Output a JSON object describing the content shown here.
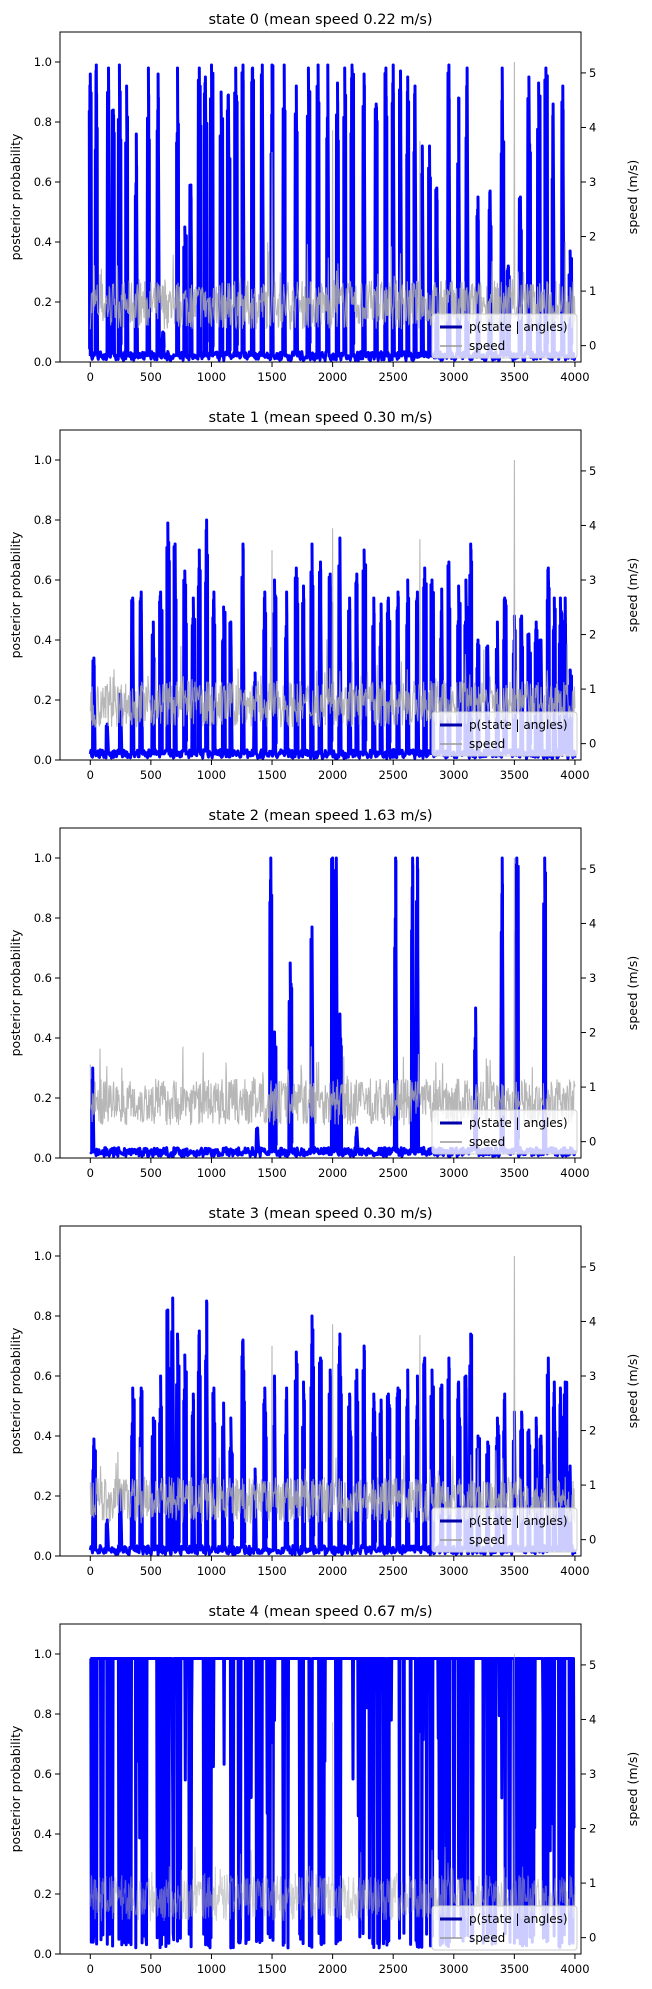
{
  "chart_data": [
    {
      "type": "line",
      "title": "state 0 (mean speed 0.22 m/s)",
      "ylabel": "posterior probability",
      "y2label": "speed (m/s)",
      "xlim": [
        -250,
        4050
      ],
      "ylim": [
        0,
        1.1
      ],
      "y2lim": [
        -0.3,
        5.75
      ],
      "xticks": [
        0,
        500,
        1000,
        1500,
        2000,
        2500,
        3000,
        3500,
        4000
      ],
      "yticks": [
        0.0,
        0.2,
        0.4,
        0.6,
        0.8,
        1.0
      ],
      "y2ticks": [
        0,
        1,
        2,
        3,
        4,
        5
      ],
      "legend": {
        "position": "lower right",
        "entries": [
          "p(state | angles)",
          "speed"
        ]
      },
      "series": [
        {
          "name": "p(state | angles)",
          "color": "#0000ff",
          "peaks": [
            [
              0,
              0.96
            ],
            [
              50,
              0.99
            ],
            [
              150,
              0.98
            ],
            [
              190,
              0.84
            ],
            [
              240,
              0.99
            ],
            [
              300,
              0.92
            ],
            [
              380,
              0.76
            ],
            [
              480,
              0.98
            ],
            [
              560,
              0.96
            ],
            [
              600,
              0.1
            ],
            [
              720,
              0.98
            ],
            [
              780,
              0.45
            ],
            [
              830,
              0.59
            ],
            [
              900,
              0.98
            ],
            [
              950,
              0.95
            ],
            [
              1000,
              0.99
            ],
            [
              1080,
              0.9
            ],
            [
              1140,
              0.89
            ],
            [
              1200,
              0.98
            ],
            [
              1260,
              0.99
            ],
            [
              1340,
              0.98
            ],
            [
              1420,
              0.99
            ],
            [
              1500,
              0.99
            ],
            [
              1600,
              0.99
            ],
            [
              1700,
              0.92
            ],
            [
              1800,
              0.98
            ],
            [
              1880,
              0.99
            ],
            [
              1960,
              0.99
            ],
            [
              2040,
              0.93
            ],
            [
              2100,
              0.98
            ],
            [
              2160,
              0.99
            ],
            [
              2260,
              0.96
            ],
            [
              2360,
              0.86
            ],
            [
              2440,
              0.98
            ],
            [
              2500,
              0.99
            ],
            [
              2560,
              0.97
            ],
            [
              2620,
              0.95
            ],
            [
              2680,
              0.92
            ],
            [
              2740,
              0.72
            ],
            [
              2800,
              0.72
            ],
            [
              2860,
              0.58
            ],
            [
              2960,
              0.99
            ],
            [
              3040,
              0.88
            ],
            [
              3110,
              0.98
            ],
            [
              3200,
              0.55
            ],
            [
              3300,
              0.57
            ],
            [
              3400,
              0.98
            ],
            [
              3450,
              0.32
            ],
            [
              3550,
              0.55
            ],
            [
              3620,
              0.95
            ],
            [
              3700,
              0.93
            ],
            [
              3760,
              0.98
            ],
            [
              3820,
              0.86
            ],
            [
              3900,
              0.92
            ],
            [
              3960,
              0.37
            ]
          ]
        },
        {
          "name": "speed",
          "color": "#b0b0b0",
          "max_speed_at": [
            3500,
            5.2
          ]
        }
      ]
    },
    {
      "type": "line",
      "title": "state 1 (mean speed 0.30 m/s)",
      "ylabel": "posterior probability",
      "y2label": "speed (m/s)",
      "xlim": [
        -250,
        4050
      ],
      "ylim": [
        0,
        1.1
      ],
      "y2lim": [
        -0.3,
        5.75
      ],
      "xticks": [
        0,
        500,
        1000,
        1500,
        2000,
        2500,
        3000,
        3500,
        4000
      ],
      "yticks": [
        0.0,
        0.2,
        0.4,
        0.6,
        0.8,
        1.0
      ],
      "y2ticks": [
        0,
        1,
        2,
        3,
        4,
        5
      ],
      "legend": {
        "position": "lower right",
        "entries": [
          "p(state | angles)",
          "speed"
        ]
      },
      "series": [
        {
          "name": "p(state | angles)",
          "color": "#0000ff",
          "peaks": [
            [
              30,
              0.34
            ],
            [
              140,
              0.12
            ],
            [
              250,
              0.22
            ],
            [
              350,
              0.54
            ],
            [
              420,
              0.56
            ],
            [
              520,
              0.46
            ],
            [
              580,
              0.56
            ],
            [
              640,
              0.79
            ],
            [
              700,
              0.72
            ],
            [
              780,
              0.63
            ],
            [
              850,
              0.54
            ],
            [
              900,
              0.7
            ],
            [
              960,
              0.8
            ],
            [
              1020,
              0.56
            ],
            [
              1100,
              0.51
            ],
            [
              1160,
              0.46
            ],
            [
              1260,
              0.72
            ],
            [
              1360,
              0.29
            ],
            [
              1440,
              0.56
            ],
            [
              1520,
              0.6
            ],
            [
              1620,
              0.56
            ],
            [
              1700,
              0.64
            ],
            [
              1760,
              0.58
            ],
            [
              1830,
              0.72
            ],
            [
              1900,
              0.66
            ],
            [
              1980,
              0.62
            ],
            [
              2060,
              0.74
            ],
            [
              2140,
              0.54
            ],
            [
              2200,
              0.62
            ],
            [
              2260,
              0.7
            ],
            [
              2340,
              0.54
            ],
            [
              2400,
              0.52
            ],
            [
              2460,
              0.54
            ],
            [
              2540,
              0.56
            ],
            [
              2620,
              0.6
            ],
            [
              2700,
              0.56
            ],
            [
              2760,
              0.64
            ],
            [
              2820,
              0.6
            ],
            [
              2900,
              0.57
            ],
            [
              2960,
              0.66
            ],
            [
              3040,
              0.58
            ],
            [
              3100,
              0.6
            ],
            [
              3140,
              0.72
            ],
            [
              3200,
              0.4
            ],
            [
              3280,
              0.38
            ],
            [
              3360,
              0.46
            ],
            [
              3420,
              0.54
            ],
            [
              3500,
              0.48
            ],
            [
              3560,
              0.48
            ],
            [
              3620,
              0.42
            ],
            [
              3680,
              0.46
            ],
            [
              3720,
              0.4
            ],
            [
              3780,
              0.64
            ],
            [
              3830,
              0.54
            ],
            [
              3880,
              0.54
            ],
            [
              3920,
              0.54
            ],
            [
              3960,
              0.3
            ]
          ]
        },
        {
          "name": "speed",
          "color": "#b0b0b0",
          "max_speed_at": [
            3500,
            5.2
          ]
        }
      ]
    },
    {
      "type": "line",
      "title": "state 2 (mean speed 1.63 m/s)",
      "ylabel": "posterior probability",
      "y2label": "speed (m/s)",
      "xlim": [
        -250,
        4050
      ],
      "ylim": [
        0,
        1.1
      ],
      "y2lim": [
        -0.3,
        5.75
      ],
      "xticks": [
        0,
        500,
        1000,
        1500,
        2000,
        2500,
        3000,
        3500,
        4000
      ],
      "yticks": [
        0.0,
        0.2,
        0.4,
        0.6,
        0.8,
        1.0
      ],
      "y2ticks": [
        0,
        1,
        2,
        3,
        4,
        5
      ],
      "legend": {
        "position": "lower right",
        "entries": [
          "p(state | angles)",
          "speed"
        ]
      },
      "series": [
        {
          "name": "p(state | angles)",
          "color": "#0000ff",
          "peaks": [
            [
              20,
              0.3
            ],
            [
              1380,
              0.1
            ],
            [
              1490,
              1.0
            ],
            [
              1520,
              0.42
            ],
            [
              1650,
              0.65
            ],
            [
              1830,
              0.77
            ],
            [
              2000,
              1.0
            ],
            [
              2030,
              1.0
            ],
            [
              2060,
              0.48
            ],
            [
              2200,
              0.1
            ],
            [
              2520,
              1.0
            ],
            [
              2660,
              1.0
            ],
            [
              2700,
              1.0
            ],
            [
              3180,
              0.5
            ],
            [
              3400,
              1.0
            ],
            [
              3520,
              1.0
            ],
            [
              3750,
              1.0
            ]
          ]
        },
        {
          "name": "speed",
          "color": "#b0b0b0",
          "max_speed_at": [
            3500,
            5.2
          ]
        }
      ]
    },
    {
      "type": "line",
      "title": "state 3 (mean speed 0.30 m/s)",
      "ylabel": "posterior probability",
      "y2label": "speed (m/s)",
      "xlim": [
        -250,
        4050
      ],
      "ylim": [
        0,
        1.1
      ],
      "y2lim": [
        -0.3,
        5.75
      ],
      "xticks": [
        0,
        500,
        1000,
        1500,
        2000,
        2500,
        3000,
        3500,
        4000
      ],
      "yticks": [
        0.0,
        0.2,
        0.4,
        0.6,
        0.8,
        1.0
      ],
      "y2ticks": [
        0,
        1,
        2,
        3,
        4,
        5
      ],
      "legend": {
        "position": "lower right",
        "entries": [
          "p(state | angles)",
          "speed"
        ]
      },
      "series": [
        {
          "name": "p(state | angles)",
          "color": "#0000ff",
          "peaks": [
            [
              30,
              0.39
            ],
            [
              140,
              0.12
            ],
            [
              250,
              0.22
            ],
            [
              350,
              0.56
            ],
            [
              420,
              0.56
            ],
            [
              520,
              0.46
            ],
            [
              580,
              0.6
            ],
            [
              640,
              0.82
            ],
            [
              680,
              0.86
            ],
            [
              720,
              0.74
            ],
            [
              780,
              0.67
            ],
            [
              850,
              0.54
            ],
            [
              900,
              0.75
            ],
            [
              960,
              0.85
            ],
            [
              1020,
              0.56
            ],
            [
              1100,
              0.51
            ],
            [
              1160,
              0.46
            ],
            [
              1260,
              0.72
            ],
            [
              1360,
              0.29
            ],
            [
              1440,
              0.56
            ],
            [
              1520,
              0.6
            ],
            [
              1620,
              0.56
            ],
            [
              1700,
              0.68
            ],
            [
              1760,
              0.58
            ],
            [
              1830,
              0.8
            ],
            [
              1900,
              0.66
            ],
            [
              1980,
              0.62
            ],
            [
              2060,
              0.74
            ],
            [
              2140,
              0.54
            ],
            [
              2200,
              0.62
            ],
            [
              2260,
              0.7
            ],
            [
              2340,
              0.54
            ],
            [
              2400,
              0.52
            ],
            [
              2460,
              0.54
            ],
            [
              2540,
              0.56
            ],
            [
              2620,
              0.62
            ],
            [
              2700,
              0.6
            ],
            [
              2760,
              0.66
            ],
            [
              2820,
              0.62
            ],
            [
              2900,
              0.57
            ],
            [
              2960,
              0.66
            ],
            [
              3040,
              0.58
            ],
            [
              3100,
              0.6
            ],
            [
              3140,
              0.74
            ],
            [
              3200,
              0.4
            ],
            [
              3280,
              0.38
            ],
            [
              3360,
              0.46
            ],
            [
              3420,
              0.54
            ],
            [
              3500,
              0.48
            ],
            [
              3560,
              0.48
            ],
            [
              3620,
              0.42
            ],
            [
              3680,
              0.46
            ],
            [
              3720,
              0.4
            ],
            [
              3780,
              0.66
            ],
            [
              3830,
              0.58
            ],
            [
              3880,
              0.56
            ],
            [
              3920,
              0.58
            ],
            [
              3960,
              0.3
            ]
          ]
        },
        {
          "name": "speed",
          "color": "#b0b0b0",
          "max_speed_at": [
            3500,
            5.2
          ]
        }
      ]
    },
    {
      "type": "line",
      "title": "state 4 (mean speed 0.67 m/s)",
      "ylabel": "posterior probability",
      "y2label": "speed (m/s)",
      "xlim": [
        -250,
        4050
      ],
      "ylim": [
        0,
        1.1
      ],
      "y2lim": [
        -0.3,
        5.75
      ],
      "xticks": [
        0,
        500,
        1000,
        1500,
        2000,
        2500,
        3000,
        3500,
        4000
      ],
      "yticks": [
        0.0,
        0.2,
        0.4,
        0.6,
        0.8,
        1.0
      ],
      "y2ticks": [
        0,
        1,
        2,
        3,
        4,
        5
      ],
      "legend": {
        "position": "lower right",
        "entries": [
          "p(state | angles)",
          "speed"
        ]
      },
      "series": [
        {
          "name": "p(state | angles)",
          "color": "#0000ff",
          "pattern": "mostly near 1.0 with frequent dips to 0",
          "peaks": [
            [
              0,
              1.0
            ],
            [
              4000,
              0.42
            ]
          ]
        },
        {
          "name": "speed",
          "color": "#b0b0b0",
          "max_speed_at": [
            3500,
            5.2
          ]
        }
      ]
    }
  ]
}
